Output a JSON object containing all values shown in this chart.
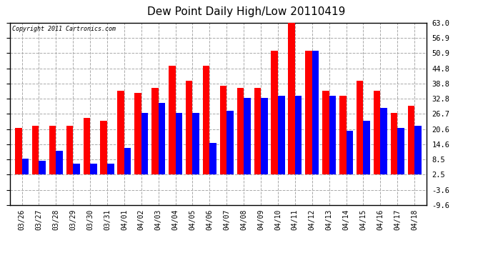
{
  "title": "Dew Point Daily High/Low 20110419",
  "copyright": "Copyright 2011 Cartronics.com",
  "dates": [
    "03/26",
    "03/27",
    "03/28",
    "03/29",
    "03/30",
    "03/31",
    "04/01",
    "04/02",
    "04/03",
    "04/04",
    "04/05",
    "04/06",
    "04/07",
    "04/08",
    "04/09",
    "04/10",
    "04/11",
    "04/12",
    "04/13",
    "04/14",
    "04/15",
    "04/16",
    "04/17",
    "04/18"
  ],
  "highs": [
    21,
    22,
    22,
    22,
    25,
    24,
    36,
    35,
    37,
    46,
    40,
    46,
    38,
    37,
    37,
    52,
    64,
    52,
    36,
    34,
    40,
    36,
    27,
    30
  ],
  "lows": [
    9,
    8,
    12,
    7,
    7,
    7,
    13,
    27,
    31,
    27,
    27,
    15,
    28,
    33,
    33,
    34,
    34,
    52,
    34,
    20,
    24,
    29,
    21,
    22
  ],
  "high_color": "#ff0000",
  "low_color": "#0000ff",
  "bg_color": "#ffffff",
  "grid_color": "#aaaaaa",
  "yticks": [
    -9.6,
    -3.6,
    2.5,
    8.5,
    14.6,
    20.6,
    26.7,
    32.8,
    38.8,
    44.8,
    50.9,
    56.9,
    63.0
  ],
  "ylabel_right": [
    "-9.6",
    "-3.6",
    "2.5",
    "8.5",
    "14.6",
    "20.6",
    "26.7",
    "32.8",
    "38.8",
    "44.8",
    "50.9",
    "56.9",
    "63.0"
  ],
  "ylim": [
    -9.6,
    63.0
  ],
  "bar_width": 0.4,
  "baseline": 2.5
}
